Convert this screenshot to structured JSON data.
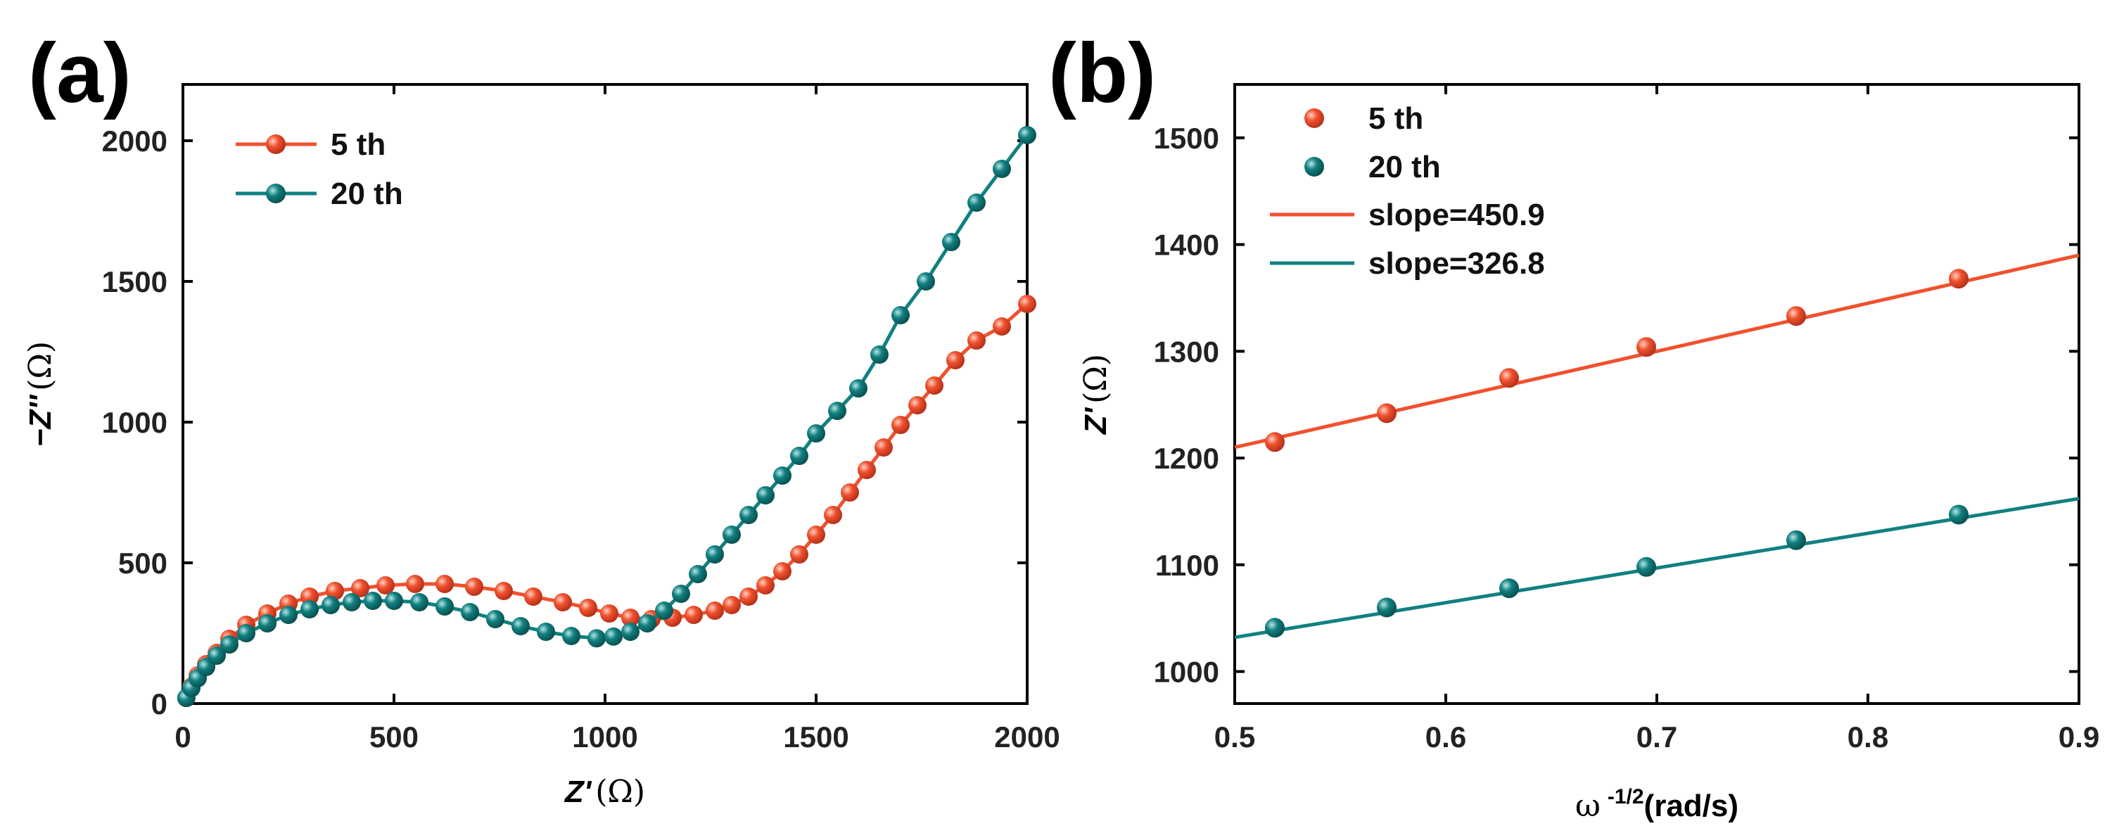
{
  "chart_data": [
    {
      "panel": "(a)",
      "type": "line",
      "xlabel_main": "Z'",
      "xlabel_unit": "(Ω)",
      "ylabel_main": "−Z''",
      "ylabel_unit": "(Ω)",
      "xlim": [
        0,
        2000
      ],
      "ylim": [
        0,
        2200
      ],
      "xticks": [
        0,
        500,
        1000,
        1500,
        2000
      ],
      "yticks": [
        0,
        500,
        1000,
        1500,
        2000
      ],
      "legend": [
        "5 th",
        "20 th"
      ],
      "series": [
        {
          "name": "5 th",
          "color": "#F0512E",
          "x": [
            8,
            20,
            35,
            55,
            80,
            110,
            150,
            200,
            250,
            300,
            360,
            420,
            480,
            550,
            620,
            690,
            760,
            830,
            900,
            960,
            1010,
            1060,
            1110,
            1160,
            1210,
            1260,
            1300,
            1340,
            1380,
            1420,
            1460,
            1500,
            1540,
            1580,
            1620,
            1660,
            1700,
            1740,
            1780,
            1830,
            1880,
            1940,
            2000
          ],
          "y": [
            20,
            60,
            100,
            140,
            180,
            230,
            280,
            320,
            355,
            380,
            400,
            410,
            420,
            425,
            425,
            415,
            400,
            380,
            360,
            340,
            320,
            305,
            300,
            305,
            315,
            330,
            350,
            380,
            420,
            470,
            530,
            600,
            670,
            750,
            830,
            910,
            990,
            1060,
            1130,
            1220,
            1290,
            1340,
            1420
          ]
        },
        {
          "name": "20 th",
          "color": "#118080",
          "x": [
            8,
            20,
            35,
            55,
            80,
            110,
            150,
            200,
            250,
            300,
            350,
            400,
            450,
            500,
            560,
            620,
            680,
            740,
            800,
            860,
            920,
            980,
            1020,
            1060,
            1100,
            1140,
            1180,
            1220,
            1260,
            1300,
            1340,
            1380,
            1420,
            1460,
            1500,
            1550,
            1600,
            1650,
            1700,
            1760,
            1820,
            1880,
            1940,
            2000
          ],
          "y": [
            20,
            55,
            90,
            130,
            170,
            210,
            250,
            285,
            315,
            335,
            350,
            360,
            365,
            365,
            360,
            345,
            325,
            300,
            275,
            255,
            240,
            232,
            238,
            255,
            285,
            330,
            390,
            460,
            530,
            600,
            670,
            740,
            810,
            880,
            960,
            1040,
            1120,
            1240,
            1380,
            1500,
            1640,
            1780,
            1900,
            2020
          ]
        }
      ]
    },
    {
      "panel": "(b)",
      "type": "scatter",
      "xlabel_main": "ω",
      "xlabel_sup": "-1/2",
      "xlabel_unit": "(rad/s)",
      "ylabel_main": "Z'",
      "ylabel_unit": "(Ω)",
      "xlim": [
        0.5,
        0.9
      ],
      "ylim": [
        970,
        1550
      ],
      "xticks": [
        0.5,
        0.6,
        0.7,
        0.8,
        0.9
      ],
      "xtick_labels": [
        "0.5",
        "0.6",
        "0.7",
        "0.8",
        "0.9"
      ],
      "yticks": [
        1000,
        1100,
        1200,
        1300,
        1400,
        1500
      ],
      "legend": [
        "5 th",
        "20 th",
        "slope=450.9",
        "slope=326.8"
      ],
      "series": [
        {
          "name": "5 th",
          "color": "#F0512E",
          "x": [
            0.519,
            0.572,
            0.63,
            0.695,
            0.766,
            0.843
          ],
          "y": [
            1215,
            1242,
            1275,
            1304,
            1333,
            1368
          ],
          "fit": {
            "label": "slope=450.9",
            "x": [
              0.5,
              0.9
            ],
            "y": [
              1210,
              1390
            ]
          }
        },
        {
          "name": "20 th",
          "color": "#118080",
          "x": [
            0.519,
            0.572,
            0.63,
            0.695,
            0.766,
            0.843
          ],
          "y": [
            1041,
            1060,
            1078,
            1098,
            1123,
            1147
          ],
          "fit": {
            "label": "slope=326.8",
            "x": [
              0.5,
              0.9
            ],
            "y": [
              1032,
              1162
            ]
          }
        }
      ]
    }
  ]
}
